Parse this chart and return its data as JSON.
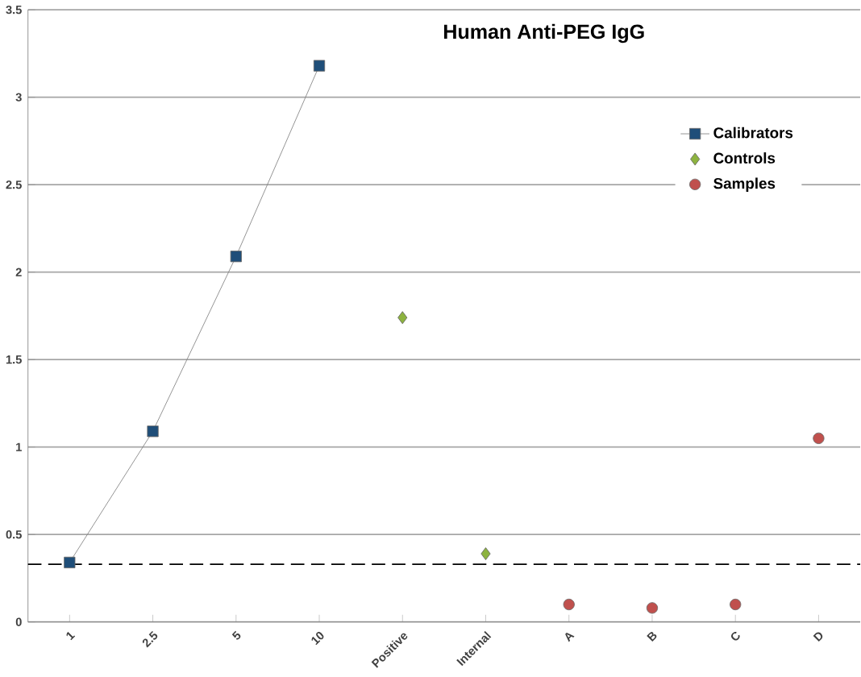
{
  "chart_data": {
    "type": "scatter",
    "title": "Human Anti-PEG IgG",
    "categories": [
      "1",
      "2.5",
      "5",
      "10",
      "Positive",
      "Internal",
      "A",
      "B",
      "C",
      "D"
    ],
    "series": [
      {
        "name": "Calibrators",
        "type": "line",
        "marker": "square",
        "color": "#1f4e79",
        "values": [
          0.34,
          1.09,
          2.09,
          3.18,
          null,
          null,
          null,
          null,
          null,
          null
        ]
      },
      {
        "name": "Controls",
        "marker": "diamond",
        "color": "#8db33f",
        "values": [
          null,
          null,
          null,
          null,
          1.74,
          0.39,
          null,
          null,
          null,
          null
        ]
      },
      {
        "name": "Samples",
        "marker": "circle",
        "color": "#c0504d",
        "values": [
          null,
          null,
          null,
          null,
          null,
          null,
          0.1,
          0.08,
          0.1,
          1.05
        ]
      }
    ],
    "ylim": [
      0,
      3.5
    ],
    "yticks": [
      0,
      0.5,
      1,
      1.5,
      2,
      2.5,
      3,
      3.5
    ],
    "ref_lines": [
      {
        "axis": "y",
        "value": 0.33,
        "line_style": "dashed",
        "color": "#000000"
      }
    ],
    "grid": "y",
    "legend": "top right"
  }
}
